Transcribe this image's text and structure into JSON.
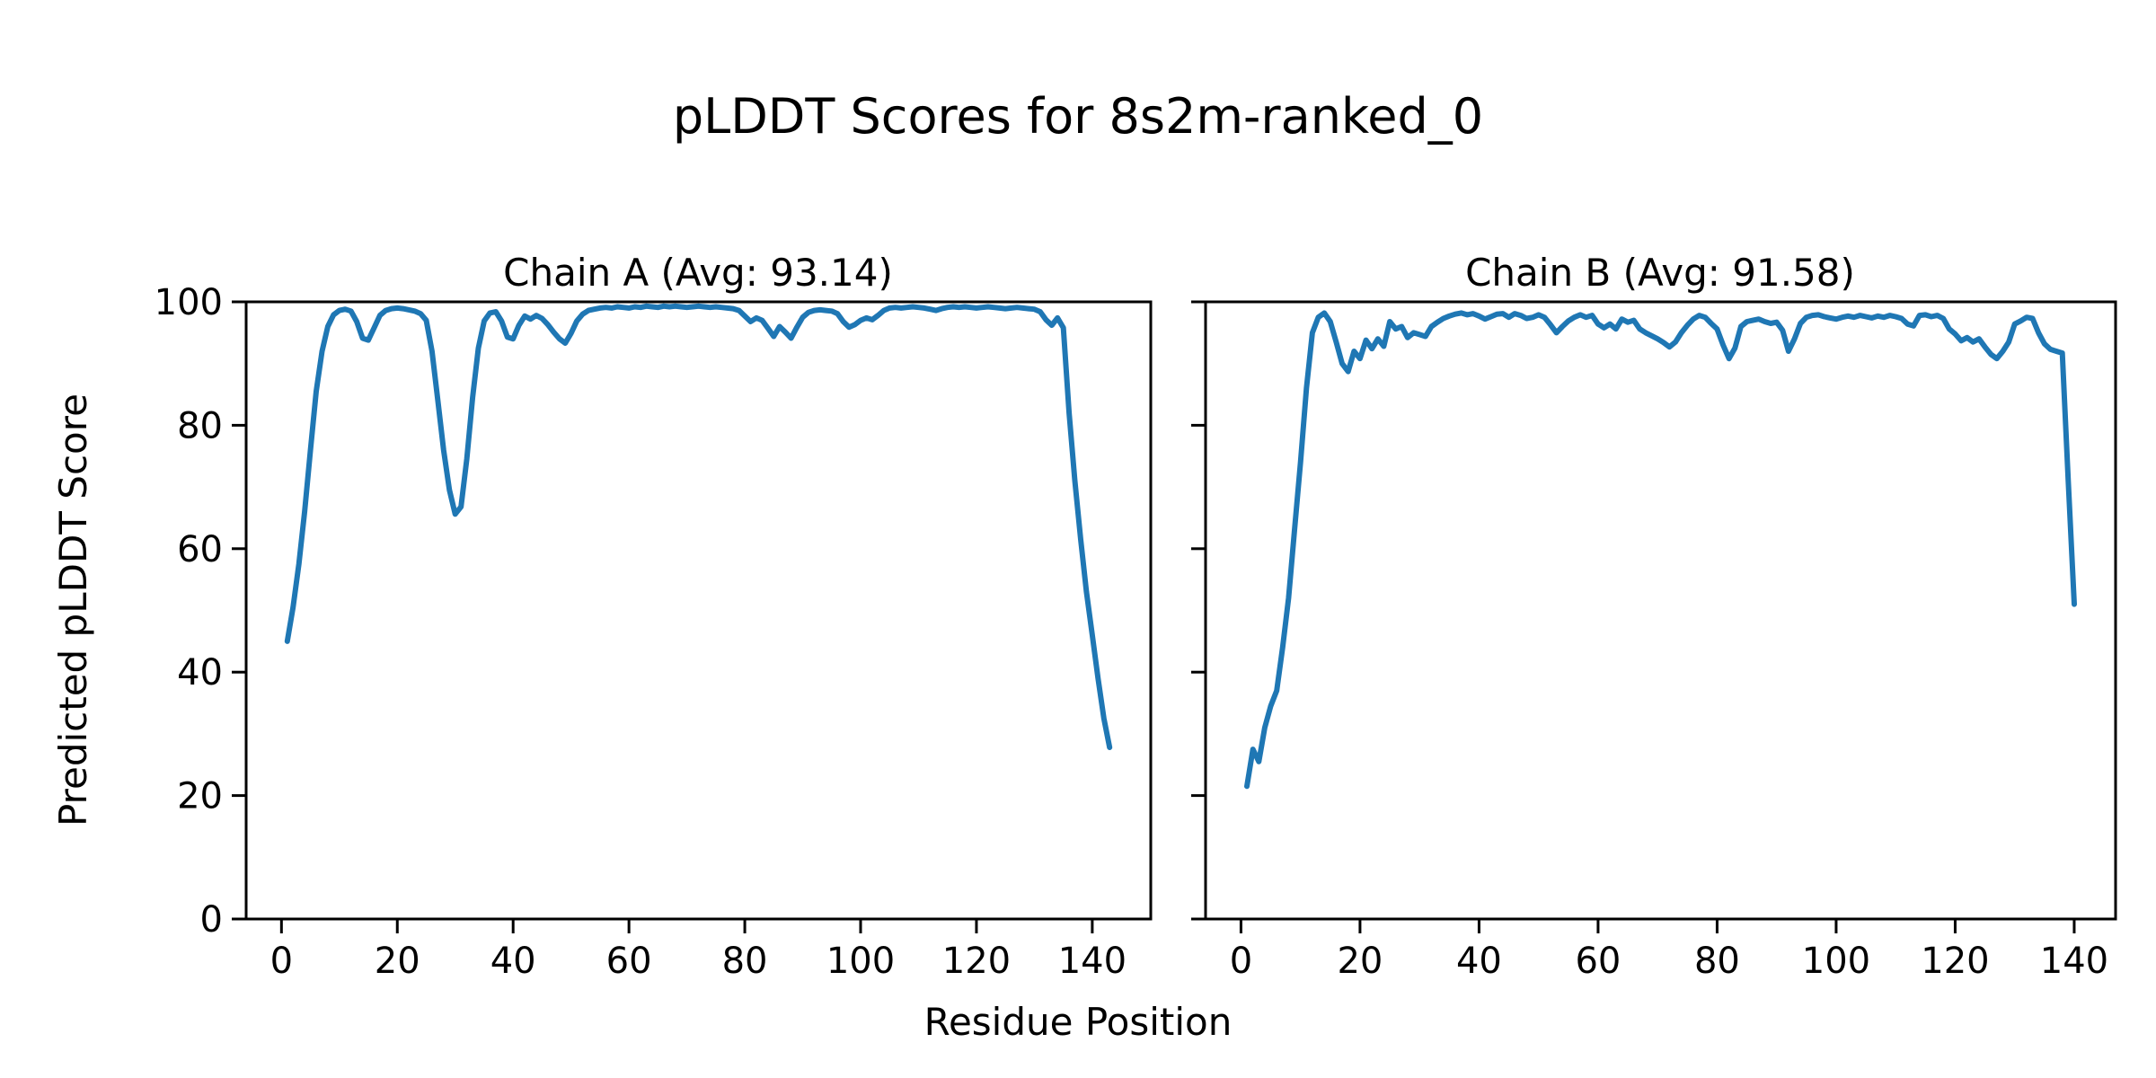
{
  "figure": {
    "title": "pLDDT Scores for 8s2m-ranked_0",
    "xlabel": "Residue Position",
    "ylabel": "Predicted pLDDT Score",
    "background": "#ffffff",
    "spine_color": "#000000",
    "text_color": "#000000"
  },
  "chart_data": [
    {
      "type": "line",
      "title": "Chain A (Avg: 93.14)",
      "chain": "A",
      "avg": 93.14,
      "line_color": "#1f77b4",
      "x_start": 1,
      "xlim": [
        -6.1,
        150.1
      ],
      "ylim": [
        0,
        100
      ],
      "xticks": [
        0,
        20,
        40,
        60,
        80,
        100,
        120,
        140
      ],
      "yticks": [
        0,
        20,
        40,
        60,
        80,
        100
      ],
      "show_ytick_labels": true,
      "grid": false,
      "values": [
        45.0,
        50.5,
        57.5,
        66.0,
        76.0,
        85.5,
        92.0,
        96.0,
        97.9,
        98.6,
        98.8,
        98.5,
        96.8,
        94.1,
        93.8,
        95.8,
        97.8,
        98.6,
        98.9,
        99.0,
        98.9,
        98.7,
        98.5,
        98.1,
        97.0,
        92.0,
        84.0,
        76.0,
        69.5,
        65.6,
        66.8,
        74.5,
        84.5,
        92.5,
        96.9,
        98.2,
        98.4,
        96.9,
        94.3,
        94.0,
        96.2,
        97.7,
        97.2,
        97.8,
        97.3,
        96.3,
        95.1,
        94.0,
        93.3,
        94.9,
        96.9,
        98.0,
        98.6,
        98.8,
        99.0,
        99.1,
        99.0,
        99.2,
        99.1,
        99.0,
        99.2,
        99.1,
        99.3,
        99.2,
        99.1,
        99.3,
        99.2,
        99.3,
        99.2,
        99.1,
        99.2,
        99.3,
        99.2,
        99.1,
        99.2,
        99.1,
        99.0,
        98.9,
        98.6,
        97.7,
        96.8,
        97.4,
        97.0,
        95.7,
        94.4,
        96.0,
        95.1,
        94.1,
        95.9,
        97.5,
        98.3,
        98.6,
        98.7,
        98.6,
        98.5,
        98.1,
        96.8,
        95.9,
        96.3,
        97.0,
        97.4,
        97.1,
        97.8,
        98.6,
        99.0,
        99.1,
        99.0,
        99.1,
        99.2,
        99.1,
        99.0,
        98.8,
        98.6,
        98.9,
        99.1,
        99.2,
        99.1,
        99.2,
        99.1,
        99.0,
        99.1,
        99.2,
        99.1,
        99.0,
        98.9,
        99.0,
        99.1,
        99.0,
        98.9,
        98.8,
        98.4,
        97.1,
        96.2,
        97.4,
        95.8,
        82.0,
        71.0,
        61.5,
        53.0,
        46.0,
        39.0,
        32.5,
        27.8
      ]
    },
    {
      "type": "line",
      "title": "Chain B (Avg: 91.58)",
      "chain": "B",
      "avg": 91.58,
      "line_color": "#1f77b4",
      "x_start": 1,
      "xlim": [
        -5.95,
        146.95
      ],
      "ylim": [
        0,
        100
      ],
      "xticks": [
        0,
        20,
        40,
        60,
        80,
        100,
        120,
        140
      ],
      "yticks": [
        0,
        20,
        40,
        60,
        80,
        100
      ],
      "show_ytick_labels": false,
      "grid": false,
      "values": [
        21.5,
        27.5,
        25.5,
        31.0,
        34.5,
        37.0,
        44.0,
        52.0,
        63.0,
        74.0,
        86.0,
        95.0,
        97.5,
        98.2,
        96.8,
        93.5,
        90.0,
        88.7,
        92.0,
        90.8,
        93.8,
        92.4,
        94.0,
        92.8,
        96.8,
        95.6,
        96.0,
        94.2,
        95.0,
        94.7,
        94.4,
        96.0,
        96.7,
        97.3,
        97.7,
        98.0,
        98.2,
        97.9,
        98.1,
        97.7,
        97.2,
        97.6,
        98.0,
        98.1,
        97.5,
        98.1,
        97.8,
        97.3,
        97.5,
        97.9,
        97.5,
        96.3,
        95.0,
        96.0,
        96.9,
        97.5,
        97.9,
        97.5,
        97.8,
        96.4,
        95.8,
        96.4,
        95.6,
        97.2,
        96.7,
        97.0,
        95.6,
        95.0,
        94.5,
        94.0,
        93.4,
        92.7,
        93.5,
        95.0,
        96.2,
        97.2,
        97.8,
        97.5,
        96.5,
        95.6,
        93.0,
        90.8,
        92.5,
        96.0,
        96.8,
        97.0,
        97.2,
        96.8,
        96.5,
        96.7,
        95.4,
        92.0,
        94.0,
        96.5,
        97.5,
        97.8,
        97.9,
        97.6,
        97.4,
        97.2,
        97.5,
        97.7,
        97.5,
        97.8,
        97.6,
        97.4,
        97.7,
        97.5,
        97.8,
        97.6,
        97.3,
        96.4,
        96.1,
        97.8,
        97.9,
        97.6,
        97.8,
        97.3,
        95.6,
        94.8,
        93.7,
        94.2,
        93.5,
        94.0,
        92.7,
        91.5,
        90.8,
        92.0,
        93.5,
        96.4,
        96.9,
        97.5,
        97.3,
        95.0,
        93.2,
        92.3,
        92.0,
        91.7,
        71.0,
        51.0
      ]
    }
  ]
}
